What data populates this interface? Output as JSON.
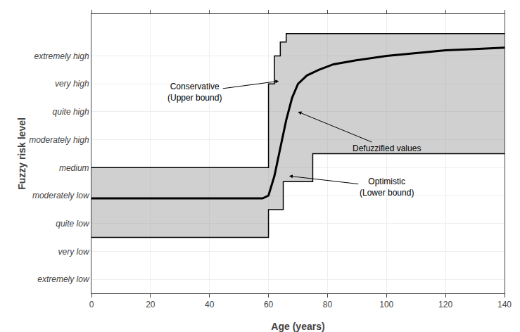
{
  "chart_data": {
    "type": "line",
    "xlabel": "Age (years)",
    "ylabel": "Fuzzy risk level",
    "xlim": [
      0,
      140
    ],
    "ylim": [
      0,
      10
    ],
    "xticks": [
      0,
      20,
      40,
      60,
      80,
      100,
      120,
      140
    ],
    "yticks": [
      {
        "value": 0.5,
        "label": "extremely low"
      },
      {
        "value": 1.5,
        "label": "very low"
      },
      {
        "value": 2.5,
        "label": "quite low"
      },
      {
        "value": 3.5,
        "label": "moderately low"
      },
      {
        "value": 4.5,
        "label": "medium"
      },
      {
        "value": 5.5,
        "label": "moderately high"
      },
      {
        "value": 6.5,
        "label": "quite high"
      },
      {
        "value": 7.5,
        "label": "very high"
      },
      {
        "value": 8.5,
        "label": "extremely high"
      }
    ],
    "grid": true,
    "series": [
      {
        "x": [
          0,
          60,
          60,
          62,
          62,
          64,
          64,
          66,
          66,
          140
        ],
        "values": [
          4.5,
          4.5,
          7.5,
          7.5,
          8.5,
          8.5,
          9.0,
          9.0,
          9.3,
          9.3
        ],
        "color": "#000000"
      },
      {
        "x": [
          0,
          60,
          60,
          65,
          65,
          75,
          75,
          140
        ],
        "values": [
          2.0,
          2.0,
          3.0,
          3.0,
          4.0,
          4.0,
          5.0,
          5.0
        ],
        "color": "#000000"
      },
      {
        "x": [
          0,
          58,
          60,
          62,
          64,
          66,
          68,
          70,
          73,
          77,
          82,
          90,
          100,
          110,
          120,
          130,
          140
        ],
        "values": [
          3.4,
          3.4,
          3.5,
          4.2,
          5.2,
          6.2,
          7.0,
          7.5,
          7.8,
          8.0,
          8.2,
          8.35,
          8.5,
          8.6,
          8.7,
          8.75,
          8.8
        ],
        "color": "#000000"
      }
    ],
    "annotations": [
      {
        "text": "Conservative\n(Upper bound)",
        "x": 63.5,
        "y": 7.6,
        "text_x": 35,
        "text_y": 7.2
      },
      {
        "text": "Defuzzified values",
        "x": 70,
        "y": 6.5,
        "text_x": 100,
        "text_y": 5.2
      },
      {
        "text": "Optimistic\n(Lower bound)",
        "x": 67,
        "y": 4.2,
        "text_x": 100,
        "text_y": 3.8
      }
    ]
  }
}
